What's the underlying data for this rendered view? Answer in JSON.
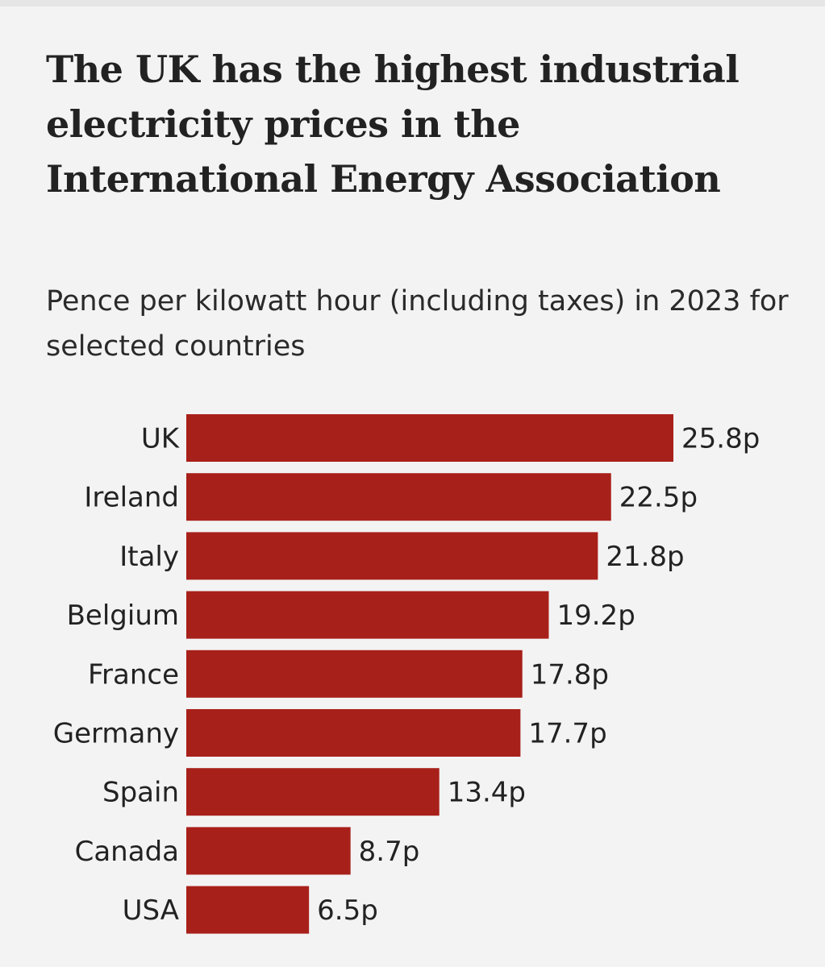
{
  "chart_data": {
    "type": "bar",
    "orientation": "horizontal",
    "title": "The UK has the highest industrial electricity prices in the International Energy Association",
    "subtitle": "Pence per kilowatt hour (including taxes) in 2023 for selected countries",
    "categories": [
      "UK",
      "Ireland",
      "Italy",
      "Belgium",
      "France",
      "Germany",
      "Spain",
      "Canada",
      "USA"
    ],
    "values": [
      25.8,
      22.5,
      21.8,
      19.2,
      17.8,
      17.7,
      13.4,
      8.7,
      6.5
    ],
    "value_labels": [
      "25.8p",
      "22.5p",
      "21.8p",
      "19.2p",
      "17.8p",
      "17.7p",
      "13.4p",
      "8.7p",
      "6.5p"
    ],
    "xlim": [
      0,
      25.8
    ],
    "unit": "p",
    "bar_color": "#a8201a"
  }
}
